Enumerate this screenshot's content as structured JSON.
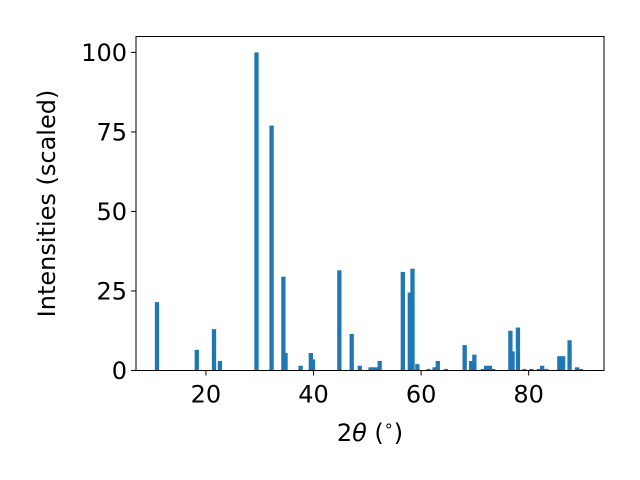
{
  "chart_data": {
    "type": "bar",
    "xlabel": "2θ (°)",
    "xlabel_parts": {
      "pre": "2",
      "theta": "θ",
      "post": " (",
      "deg": "∘",
      "close": ")"
    },
    "ylabel": "Intensities (scaled)",
    "xlim": [
      7,
      94
    ],
    "ylim": [
      0,
      105
    ],
    "xticks": [
      20,
      40,
      60,
      80
    ],
    "yticks": [
      0,
      25,
      50,
      75,
      100
    ],
    "bar_width": 0.8,
    "color": "#1f77b4",
    "grid": false,
    "series": [
      {
        "x": [
          10.9,
          18.3,
          21.5,
          22.6,
          29.4,
          32.2,
          34.4,
          34.8,
          37.6,
          39.5,
          39.9,
          44.8,
          47.1,
          48.6,
          50.6,
          51.2,
          51.9,
          52.3,
          56.6,
          57.9,
          58.4,
          59.3,
          61.4,
          62.5,
          63.1,
          64.6,
          68.1,
          69.3,
          69.9,
          71.5,
          72.1,
          72.8,
          73.4,
          76.6,
          77.0,
          78.0,
          79.2,
          80.5,
          81.9,
          82.5,
          83.3,
          85.7,
          86.4,
          87.6,
          89.0,
          89.7
        ],
        "values": [
          21.5,
          6.5,
          13.0,
          3.0,
          100.0,
          77.0,
          29.5,
          5.5,
          1.5,
          5.5,
          3.5,
          31.5,
          11.5,
          1.5,
          1.0,
          1.0,
          1.0,
          3.0,
          31.0,
          24.5,
          32.0,
          2.0,
          0.5,
          1.0,
          3.0,
          0.5,
          8.0,
          3.0,
          5.0,
          0.5,
          1.5,
          1.5,
          0.5,
          12.5,
          6.0,
          13.5,
          0.5,
          0.5,
          0.5,
          1.5,
          0.5,
          4.5,
          4.5,
          9.5,
          1.0,
          0.5
        ]
      }
    ]
  }
}
